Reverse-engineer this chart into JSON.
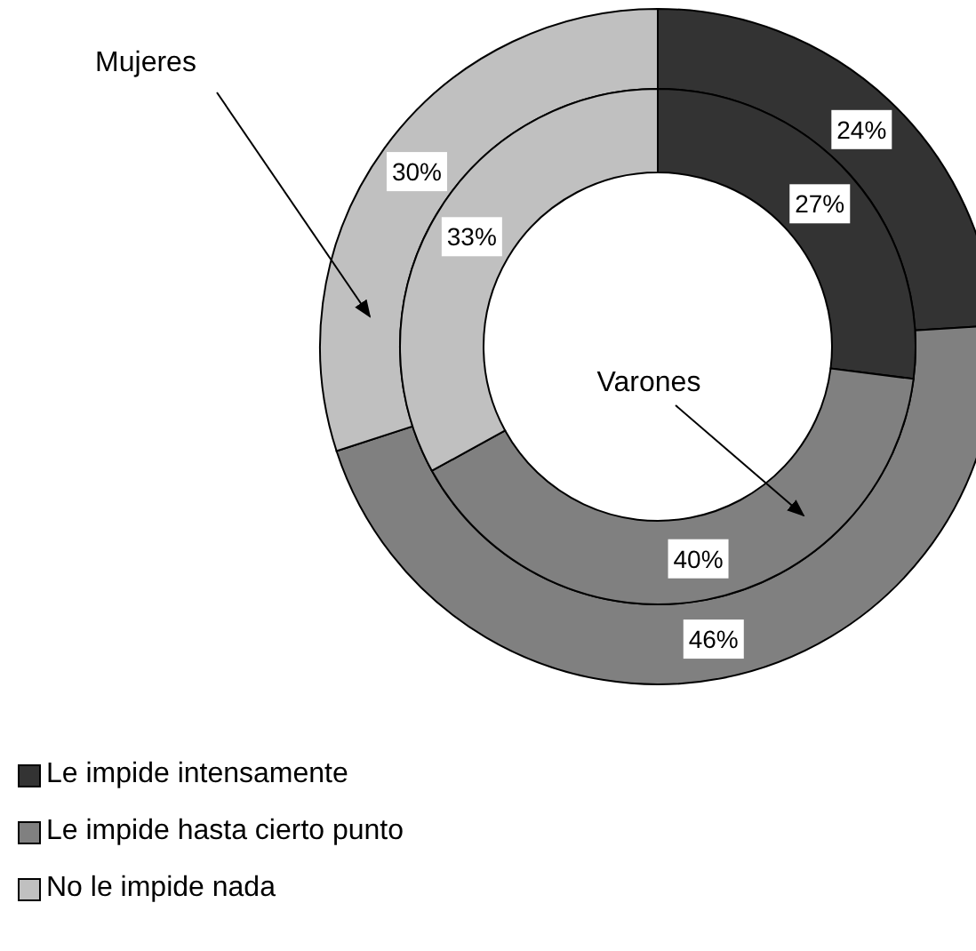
{
  "chart_data": {
    "type": "donut",
    "categories": [
      "Le impide intensamente",
      "Le impide hasta cierto punto",
      "No le impide nada"
    ],
    "colors": [
      "#333333",
      "#808080",
      "#c0c0c0"
    ],
    "series": [
      {
        "name": "Mujeres",
        "values": [
          24,
          46,
          30
        ],
        "value_labels": [
          "24%",
          "46%",
          "30%"
        ]
      },
      {
        "name": "Varones",
        "values": [
          27,
          40,
          33
        ],
        "value_labels": [
          "27%",
          "40%",
          "33%"
        ]
      }
    ],
    "legend": "bottom left"
  }
}
